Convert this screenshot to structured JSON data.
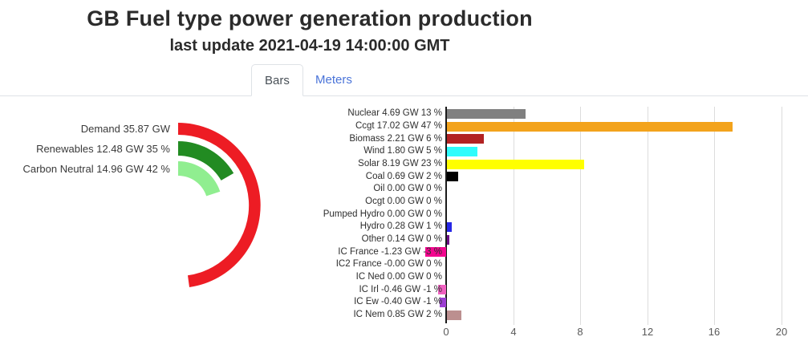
{
  "header": {
    "title": "GB Fuel type power generation production",
    "subtitle": "last update 2021-04-19 14:00:00 GMT"
  },
  "tabs": [
    {
      "label": "Bars",
      "active": true
    },
    {
      "label": "Meters",
      "active": false
    }
  ],
  "colors": {
    "tab_link_blue": "#4a74d9",
    "tab_border": "#dee2e6",
    "axis_line": "#1a1a1a",
    "gridline": "#dcdcdc"
  },
  "chart_data": [
    {
      "type": "gauge",
      "description": "concentric arcs starting at 12 o'clock sweeping clockwise, GW scaled to full circle",
      "gauge_max_gw": 75,
      "rings": [
        {
          "name": "Demand",
          "label": "Demand 35.87 GW",
          "value_gw": 35.87,
          "percent_of_demand": null,
          "color": "#ed1c24",
          "outer_r": 103,
          "inner_r": 88
        },
        {
          "name": "Renewables",
          "label": "Renewables 12.48 GW 35 %",
          "value_gw": 12.48,
          "percent_of_demand": 35,
          "color": "#228b22",
          "outer_r": 80,
          "inner_r": 62
        },
        {
          "name": "Carbon Neutral",
          "label": "Carbon Neutral 14.96 GW 42 %",
          "value_gw": 14.96,
          "percent_of_demand": 42,
          "color": "#90ee90",
          "outer_r": 55,
          "inner_r": 37
        }
      ]
    },
    {
      "type": "bar",
      "orientation": "horizontal",
      "unit": "GW",
      "x_ticks": [
        0,
        4,
        8,
        12,
        16,
        20
      ],
      "xlim": [
        -1.6,
        21
      ],
      "grid": true,
      "rows": [
        {
          "fuel": "Nuclear",
          "label": "Nuclear 4.69 GW 13 %",
          "value_gw": 4.69,
          "percent": 13,
          "color": "#808080"
        },
        {
          "fuel": "Ccgt",
          "label": "Ccgt 17.02 GW 47 %",
          "value_gw": 17.02,
          "percent": 47,
          "color": "#f3a31c"
        },
        {
          "fuel": "Biomass",
          "label": "Biomass 2.21 GW 6 %",
          "value_gw": 2.21,
          "percent": 6,
          "color": "#b22222"
        },
        {
          "fuel": "Wind",
          "label": "Wind 1.80 GW 5 %",
          "value_gw": 1.8,
          "percent": 5,
          "color": "#2efcfc"
        },
        {
          "fuel": "Solar",
          "label": "Solar 8.19 GW 23 %",
          "value_gw": 8.19,
          "percent": 23,
          "color": "#ffff00"
        },
        {
          "fuel": "Coal",
          "label": "Coal 0.69 GW 2 %",
          "value_gw": 0.69,
          "percent": 2,
          "color": "#000000"
        },
        {
          "fuel": "Oil",
          "label": "Oil 0.00 GW 0 %",
          "value_gw": 0.0,
          "percent": 0,
          "color": null
        },
        {
          "fuel": "Ocgt",
          "label": "Ocgt 0.00 GW 0 %",
          "value_gw": 0.0,
          "percent": 0,
          "color": null
        },
        {
          "fuel": "Pumped Hydro",
          "label": "Pumped Hydro 0.00 GW 0 %",
          "value_gw": 0.0,
          "percent": 0,
          "color": null
        },
        {
          "fuel": "Hydro",
          "label": "Hydro 0.28 GW 1 %",
          "value_gw": 0.28,
          "percent": 1,
          "color": "#2727e6"
        },
        {
          "fuel": "Other",
          "label": "Other 0.14 GW 0 %",
          "value_gw": 0.14,
          "percent": 0,
          "color": "#6c0f87"
        },
        {
          "fuel": "IC France",
          "label": "IC France -1.23 GW -3 %",
          "value_gw": -1.23,
          "percent": -3,
          "color": "#f3078f"
        },
        {
          "fuel": "IC2 France",
          "label": "IC2 France -0.00 GW 0 %",
          "value_gw": 0.0,
          "percent": 0,
          "color": null
        },
        {
          "fuel": "IC Ned",
          "label": "IC Ned 0.00 GW 0 %",
          "value_gw": 0.0,
          "percent": 0,
          "color": null
        },
        {
          "fuel": "IC Irl",
          "label": "IC Irl -0.46 GW -1 %",
          "value_gw": -0.46,
          "percent": -1,
          "color": "#f060c0"
        },
        {
          "fuel": "IC Ew",
          "label": "IC Ew -0.40 GW -1 %",
          "value_gw": -0.4,
          "percent": -1,
          "color": "#9d3fd3"
        },
        {
          "fuel": "IC Nem",
          "label": "IC Nem 0.85 GW 2 %",
          "value_gw": 0.85,
          "percent": 2,
          "color": "#bc8f8f"
        }
      ]
    }
  ]
}
